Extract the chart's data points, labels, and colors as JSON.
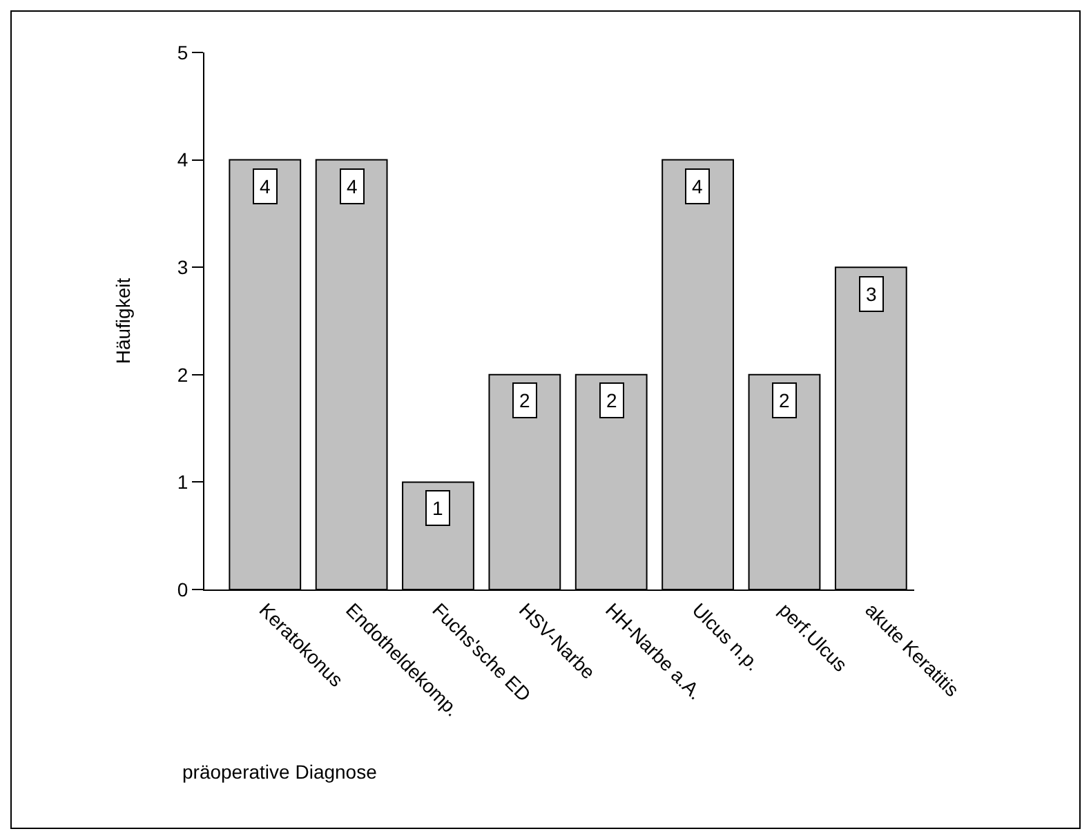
{
  "chart_data": {
    "type": "bar",
    "xlabel": "präoperative Diagnose",
    "ylabel": "Häufigkeit",
    "categories": [
      "Keratokonus",
      "Endotheldekomp.",
      "Fuchs'sche ED",
      "HSV-Narbe",
      "HH-Narbe a.A.",
      "Ulcus n.p.",
      "perf.Ulcus",
      "akute Keratitis"
    ],
    "values": [
      4,
      4,
      1,
      2,
      2,
      4,
      2,
      3
    ],
    "color": "#c0c0c0",
    "ylim": [
      0,
      5
    ],
    "yticks": [
      0,
      1,
      2,
      3,
      4,
      5
    ],
    "legend": false,
    "data_labels": true
  }
}
